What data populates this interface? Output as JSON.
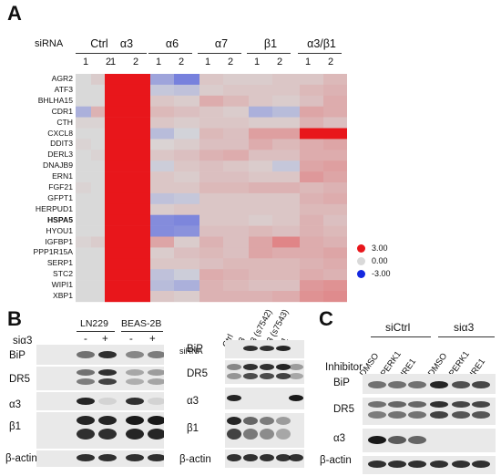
{
  "panel_a": {
    "letter": "A",
    "sirna_label": "siRNA",
    "groups": [
      "Ctrl",
      "α3",
      "α6",
      "α7",
      "β1",
      "α3/β1"
    ],
    "replicates": [
      "1",
      "2"
    ],
    "genes": [
      "AGR2",
      "ATF3",
      "BHLHA15",
      "CDR1",
      "CTH",
      "CXCL8",
      "DDIT3",
      "DERL3",
      "DNAJB9",
      "ERN1",
      "FGF21",
      "GFPT1",
      "HERPUD1",
      "HSPA5",
      "HYOU1",
      "IGFBP1",
      "PPP1R15A",
      "SERP1",
      "STC2",
      "WIPI1",
      "XBP1"
    ],
    "bold_gene": "HSPA5",
    "legend": [
      {
        "value": "3.00",
        "color": "#e8161b"
      },
      {
        "value": "0.00",
        "color": "#d9d9d9"
      },
      {
        "value": "-3.00",
        "color": "#1428e0"
      }
    ],
    "heatmap_values": [
      [
        0,
        0.2,
        3,
        3,
        -0.9,
        -1.5,
        0.3,
        0.2,
        0.2,
        0.3,
        0.3,
        0.5
      ],
      [
        0,
        0,
        3,
        3,
        -0.3,
        -0.4,
        0.2,
        0.3,
        0.3,
        0.3,
        0.5,
        0.6
      ],
      [
        0,
        0,
        3,
        3,
        0.3,
        0.2,
        0.7,
        0.5,
        0.3,
        0.2,
        0.4,
        0.7
      ],
      [
        -0.7,
        0.6,
        3,
        3,
        0.5,
        0.4,
        0.3,
        0.2,
        -0.7,
        -0.5,
        0.8,
        0.7
      ],
      [
        0.1,
        0.1,
        3,
        3,
        0.3,
        0.2,
        0.3,
        0.3,
        0.2,
        0.2,
        0.6,
        0.4
      ],
      [
        0,
        0,
        3,
        3,
        -0.5,
        -0.1,
        0.5,
        0.4,
        0.9,
        0.9,
        3,
        3
      ],
      [
        0.1,
        0,
        3,
        3,
        0.1,
        0.2,
        0.4,
        0.4,
        0.7,
        0.5,
        0.7,
        0.8
      ],
      [
        0,
        0.1,
        3,
        3,
        0.3,
        0.4,
        0.6,
        0.7,
        0.4,
        0.4,
        0.7,
        0.7
      ],
      [
        0,
        0,
        3,
        3,
        -0.2,
        0.3,
        0.4,
        0.3,
        0.2,
        -0.3,
        0.8,
        0.9
      ],
      [
        0,
        0,
        3,
        3,
        0.3,
        0.2,
        0.4,
        0.4,
        0.3,
        0.3,
        1.0,
        0.8
      ],
      [
        0.1,
        0,
        3,
        3,
        0.3,
        0.3,
        0.5,
        0.5,
        0.6,
        0.6,
        0.5,
        0.6
      ],
      [
        0,
        0,
        3,
        3,
        -0.4,
        -0.3,
        0.3,
        0.3,
        0.3,
        0.3,
        0.6,
        0.7
      ],
      [
        0,
        0,
        3,
        3,
        0.2,
        0.3,
        0.3,
        0.3,
        0.3,
        0.3,
        0.5,
        0.5
      ],
      [
        0,
        0,
        3,
        3,
        -1.3,
        -1.4,
        0.3,
        0.3,
        0.2,
        0.3,
        0.6,
        0.4
      ],
      [
        0,
        0,
        3,
        3,
        -1.3,
        -1.2,
        0.4,
        0.4,
        0.5,
        0.4,
        0.6,
        0.5
      ],
      [
        0.1,
        0.2,
        3,
        3,
        0.8,
        0.2,
        0.6,
        0.4,
        0.8,
        1.3,
        0.7,
        0.6
      ],
      [
        0,
        0,
        3,
        3,
        0.2,
        0.4,
        0.5,
        0.4,
        0.8,
        0.7,
        0.7,
        0.8
      ],
      [
        0,
        0,
        3,
        3,
        0.3,
        0.3,
        0.4,
        0.5,
        0.5,
        0.5,
        0.6,
        0.7
      ],
      [
        0,
        0,
        3,
        3,
        -0.4,
        -0.2,
        0.7,
        0.6,
        0.5,
        0.5,
        0.7,
        0.6
      ],
      [
        0,
        0,
        3,
        3,
        -0.5,
        -0.7,
        0.6,
        0.5,
        0.4,
        0.4,
        1.0,
        1.1
      ],
      [
        0,
        0,
        3,
        3,
        0.3,
        0.2,
        0.6,
        0.6,
        0.6,
        0.7,
        1.1,
        1.2
      ]
    ]
  },
  "panel_b": {
    "letter": "B",
    "left": {
      "cell_lines": [
        "LN229",
        "BEAS-2B"
      ],
      "sirna_label": "siα3",
      "signs": [
        "-",
        "+",
        "-",
        "+"
      ],
      "rows": [
        "BiP",
        "DR5",
        "α3",
        "β1",
        "β-actin"
      ]
    },
    "right": {
      "sirna_label": "siRNA",
      "columns": [
        "Ctrl",
        "α3",
        "α3 (s7542)",
        "α3 (s7543)",
        "β1"
      ],
      "rows": [
        "BiP",
        "DR5",
        "α3",
        "β1",
        "β-actin"
      ]
    }
  },
  "panel_c": {
    "letter": "C",
    "groups": [
      "siCtrl",
      "siα3"
    ],
    "inhibitor_label": "Inhibitor",
    "columns": [
      "DMSO",
      "PERK1",
      "IRE1",
      "DMSO",
      "PERK1",
      "IRE1"
    ],
    "rows": [
      "BiP",
      "DR5",
      "α3",
      "β-actin"
    ]
  }
}
